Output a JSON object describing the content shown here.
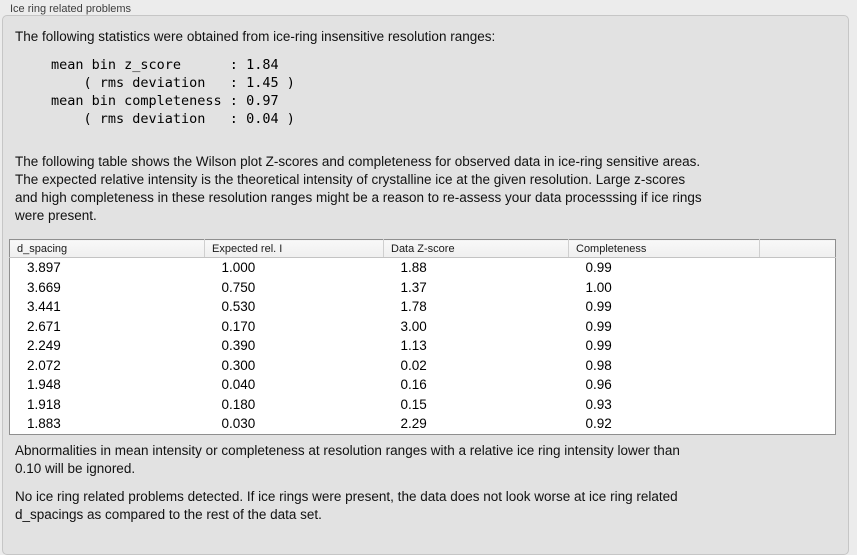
{
  "panel": {
    "title": "Ice ring related problems"
  },
  "stats": {
    "intro": "The following statistics were obtained from ice-ring insensitive resolution ranges:",
    "block": "mean bin z_score      : 1.84\n    ( rms deviation   : 1.45 )\nmean bin completeness : 0.97\n    ( rms deviation   : 0.04 )"
  },
  "description": "The following table shows the Wilson plot Z-scores and completeness for observed data in ice-ring sensitive areas.\nThe expected relative intensity is the theoretical intensity of crystalline ice at the given resolution. Large z-scores\nand high completeness in these resolution ranges might be a reason to re-assess your data processsing if ice rings\nwere present.",
  "table": {
    "columns": [
      "d_spacing",
      "Expected rel. I",
      "Data Z-score",
      "Completeness",
      ""
    ],
    "rows": [
      [
        "3.897",
        "1.000",
        "1.88",
        "0.99"
      ],
      [
        "3.669",
        "0.750",
        "1.37",
        "1.00"
      ],
      [
        "3.441",
        "0.530",
        "1.78",
        "0.99"
      ],
      [
        "2.671",
        "0.170",
        "3.00",
        "0.99"
      ],
      [
        "2.249",
        "0.390",
        "1.13",
        "0.99"
      ],
      [
        "2.072",
        "0.300",
        "0.02",
        "0.98"
      ],
      [
        "1.948",
        "0.040",
        "0.16",
        "0.96"
      ],
      [
        "1.918",
        "0.180",
        "0.15",
        "0.93"
      ],
      [
        "1.883",
        "0.030",
        "2.29",
        "0.92"
      ]
    ]
  },
  "notes": {
    "ignore_note": "Abnormalities in mean intensity or completeness at resolution ranges with a relative ice ring intensity lower than\n0.10 will be ignored.",
    "conclusion": "No ice ring related problems detected. If ice rings were present, the data does not look worse at ice ring related\nd_spacings as compared to the rest of the data set."
  },
  "colors": {
    "page_background": "#ececec",
    "panel_background": "#e2e2e2",
    "table_background": "#ffffff",
    "table_border": "#8f8f8f"
  }
}
